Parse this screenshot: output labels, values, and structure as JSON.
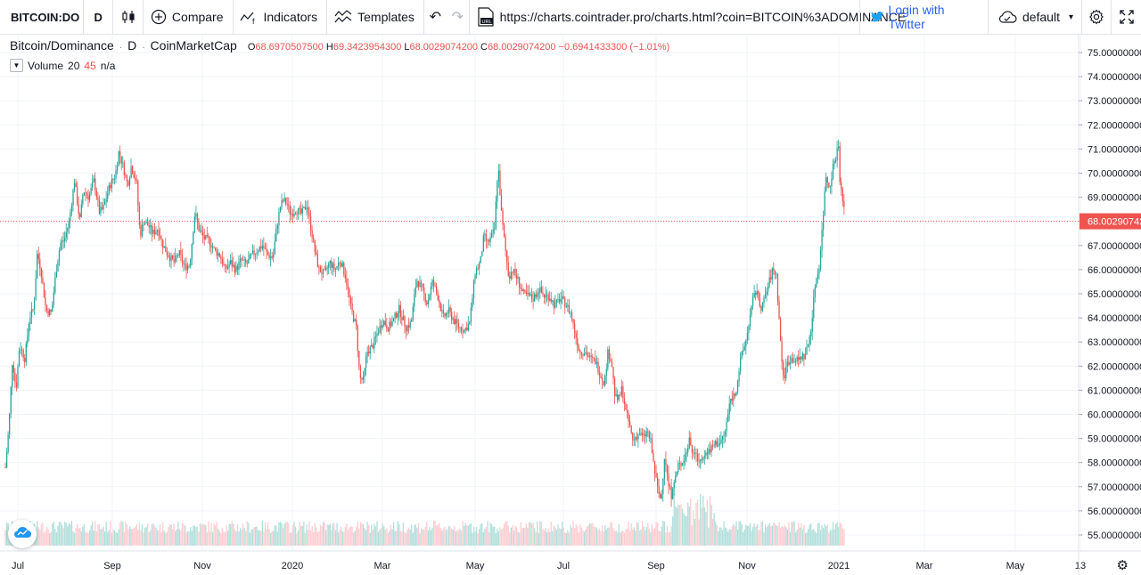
{
  "toolbar": {
    "symbol": "BITCOIN:DO",
    "interval": "D",
    "compare_label": "Compare",
    "indicators_label": "Indicators",
    "templates_label": "Templates",
    "url": "https://charts.cointrader.pro/charts.html?coin=BITCOIN%3ADOMINANCE",
    "login_label": "Login with Twitter",
    "layout_label": "default"
  },
  "legend": {
    "title": "Bitcoin/Dominance",
    "interval": "D",
    "source": "CoinMarketCap",
    "ohlc": {
      "o_key": "O",
      "o_val": "68.6970507500",
      "h_key": "H",
      "h_val": "69.3423954300",
      "l_key": "L",
      "l_val": "68.0029074200",
      "c_key": "C",
      "c_val": "68.0029074200",
      "change": "−0.6941433300 (−1.01%)"
    },
    "volume_label": "Volume",
    "volume_p1": "20",
    "volume_p2": "45",
    "volume_val": "n/a"
  },
  "colors": {
    "up": "#26a69a",
    "down": "#ef5350",
    "vol_up": "#b2dfdb",
    "vol_down": "#ffcdd2",
    "grid": "#f0f3fa",
    "price_line": "#ef5350"
  },
  "chart_data": {
    "type": "candlestick",
    "y_ticks": [
      "75.00000000",
      "74.00000000",
      "73.00000000",
      "72.00000000",
      "71.00000000",
      "70.00000000",
      "69.00000000",
      "68.00000000",
      "67.00000000",
      "66.00000000",
      "65.00000000",
      "64.00000000",
      "63.00000000",
      "62.00000000",
      "61.00000000",
      "60.00000000",
      "59.00000000",
      "58.00000000",
      "57.00000000",
      "56.00000000",
      "55.00000000"
    ],
    "x_ticks": [
      "Jul",
      "Sep",
      "Nov",
      "2020",
      "Mar",
      "May",
      "Jul",
      "Sep",
      "Nov",
      "2021",
      "Mar",
      "May",
      "13"
    ],
    "ylim": [
      54.5,
      75.2
    ],
    "last_price_label": "68.00290742",
    "last_price": 68.0029074,
    "close_path": [
      [
        0,
        57.8
      ],
      [
        4,
        59.5
      ],
      [
        8,
        62.3
      ],
      [
        12,
        61.0
      ],
      [
        16,
        62.9
      ],
      [
        22,
        62.3
      ],
      [
        27,
        64.0
      ],
      [
        32,
        64.4
      ],
      [
        36,
        66.7
      ],
      [
        40,
        66.0
      ],
      [
        46,
        64.3
      ],
      [
        52,
        64.2
      ],
      [
        57,
        65.9
      ],
      [
        62,
        67.1
      ],
      [
        66,
        67.2
      ],
      [
        72,
        68.0
      ],
      [
        78,
        69.7
      ],
      [
        84,
        68.0
      ],
      [
        88,
        69.3
      ],
      [
        94,
        69.0
      ],
      [
        100,
        69.7
      ],
      [
        106,
        68.4
      ],
      [
        110,
        68.5
      ],
      [
        118,
        69.5
      ],
      [
        124,
        69.9
      ],
      [
        128,
        70.9
      ],
      [
        132,
        70.4
      ],
      [
        138,
        69.5
      ],
      [
        142,
        70.3
      ],
      [
        148,
        69.6
      ],
      [
        152,
        67.4
      ],
      [
        156,
        68.0
      ],
      [
        162,
        67.8
      ],
      [
        166,
        67.5
      ],
      [
        172,
        67.7
      ],
      [
        178,
        67.0
      ],
      [
        184,
        66.6
      ],
      [
        190,
        66.3
      ],
      [
        196,
        66.7
      ],
      [
        202,
        66.1
      ],
      [
        208,
        66.2
      ],
      [
        214,
        68.4
      ],
      [
        218,
        67.7
      ],
      [
        224,
        67.3
      ],
      [
        230,
        67.2
      ],
      [
        236,
        66.8
      ],
      [
        242,
        66.6
      ],
      [
        248,
        66.0
      ],
      [
        254,
        66.3
      ],
      [
        260,
        66.0
      ],
      [
        266,
        66.4
      ],
      [
        272,
        66.2
      ],
      [
        278,
        66.6
      ],
      [
        284,
        66.8
      ],
      [
        290,
        67.0
      ],
      [
        296,
        66.6
      ],
      [
        302,
        66.5
      ],
      [
        306,
        67.7
      ],
      [
        310,
        68.6
      ],
      [
        314,
        68.9
      ],
      [
        318,
        68.7
      ],
      [
        322,
        68.3
      ],
      [
        328,
        68.5
      ],
      [
        334,
        68.3
      ],
      [
        340,
        68.7
      ],
      [
        344,
        67.9
      ],
      [
        350,
        66.6
      ],
      [
        354,
        66.0
      ],
      [
        360,
        65.8
      ],
      [
        366,
        66.3
      ],
      [
        372,
        66.0
      ],
      [
        378,
        66.4
      ],
      [
        384,
        65.7
      ],
      [
        390,
        64.4
      ],
      [
        396,
        63.6
      ],
      [
        400,
        61.5
      ],
      [
        404,
        61.4
      ],
      [
        408,
        62.6
      ],
      [
        414,
        62.8
      ],
      [
        420,
        63.4
      ],
      [
        426,
        63.9
      ],
      [
        432,
        63.6
      ],
      [
        438,
        63.9
      ],
      [
        444,
        64.4
      ],
      [
        448,
        64.0
      ],
      [
        452,
        63.6
      ],
      [
        458,
        63.8
      ],
      [
        464,
        65.6
      ],
      [
        470,
        65.2
      ],
      [
        476,
        64.6
      ],
      [
        482,
        65.5
      ],
      [
        488,
        64.9
      ],
      [
        494,
        64.0
      ],
      [
        500,
        64.3
      ],
      [
        506,
        63.9
      ],
      [
        512,
        63.6
      ],
      [
        518,
        63.5
      ],
      [
        524,
        63.8
      ],
      [
        530,
        65.9
      ],
      [
        536,
        66.3
      ],
      [
        540,
        67.4
      ],
      [
        544,
        67.1
      ],
      [
        548,
        67.3
      ],
      [
        552,
        67.7
      ],
      [
        556,
        70.4
      ],
      [
        560,
        68.2
      ],
      [
        564,
        66.9
      ],
      [
        568,
        65.7
      ],
      [
        572,
        66.0
      ],
      [
        578,
        65.6
      ],
      [
        584,
        65.0
      ],
      [
        590,
        64.9
      ],
      [
        596,
        64.8
      ],
      [
        602,
        65.2
      ],
      [
        608,
        64.9
      ],
      [
        614,
        64.9
      ],
      [
        620,
        64.5
      ],
      [
        626,
        64.8
      ],
      [
        632,
        64.6
      ],
      [
        638,
        64.2
      ],
      [
        642,
        63.5
      ],
      [
        648,
        62.6
      ],
      [
        654,
        62.6
      ],
      [
        660,
        62.3
      ],
      [
        666,
        62.2
      ],
      [
        672,
        61.6
      ],
      [
        676,
        61.3
      ],
      [
        680,
        62.6
      ],
      [
        684,
        62.2
      ],
      [
        688,
        60.7
      ],
      [
        692,
        60.6
      ],
      [
        696,
        61.1
      ],
      [
        700,
        60.1
      ],
      [
        704,
        59.6
      ],
      [
        708,
        58.9
      ],
      [
        712,
        59.1
      ],
      [
        716,
        59.2
      ],
      [
        720,
        59.0
      ],
      [
        724,
        59.3
      ],
      [
        728,
        58.9
      ],
      [
        732,
        57.8
      ],
      [
        736,
        56.9
      ],
      [
        740,
        56.4
      ],
      [
        744,
        58.4
      ],
      [
        748,
        57.1
      ],
      [
        752,
        56.6
      ],
      [
        756,
        57.4
      ],
      [
        760,
        57.9
      ],
      [
        764,
        58.1
      ],
      [
        768,
        58.4
      ],
      [
        772,
        58.9
      ],
      [
        776,
        58.4
      ],
      [
        780,
        58.2
      ],
      [
        784,
        58.1
      ],
      [
        788,
        58.4
      ],
      [
        794,
        58.5
      ],
      [
        800,
        58.8
      ],
      [
        806,
        58.8
      ],
      [
        812,
        59.2
      ],
      [
        818,
        60.6
      ],
      [
        824,
        60.9
      ],
      [
        830,
        62.3
      ],
      [
        836,
        63.1
      ],
      [
        840,
        64.0
      ],
      [
        844,
        64.8
      ],
      [
        848,
        65.2
      ],
      [
        852,
        64.4
      ],
      [
        856,
        64.7
      ],
      [
        862,
        65.5
      ],
      [
        866,
        66.0
      ],
      [
        870,
        65.8
      ],
      [
        874,
        63.4
      ],
      [
        878,
        61.4
      ],
      [
        882,
        62.1
      ],
      [
        886,
        62.3
      ],
      [
        890,
        62.3
      ],
      [
        894,
        62.2
      ],
      [
        898,
        62.4
      ],
      [
        902,
        62.4
      ],
      [
        906,
        62.9
      ],
      [
        910,
        63.8
      ],
      [
        914,
        65.5
      ],
      [
        918,
        66.0
      ],
      [
        922,
        67.8
      ],
      [
        926,
        69.9
      ],
      [
        930,
        69.4
      ],
      [
        934,
        70.3
      ],
      [
        938,
        70.8
      ],
      [
        940,
        71.3
      ],
      [
        942,
        69.6
      ],
      [
        944,
        69.0
      ],
      [
        946,
        68.7
      ],
      [
        948,
        68.0
      ]
    ]
  }
}
